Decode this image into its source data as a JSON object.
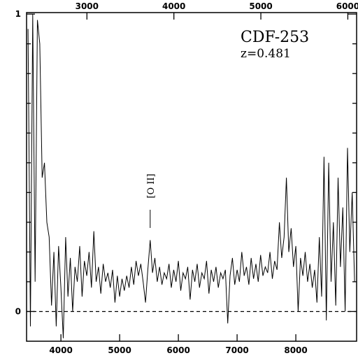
{
  "chart_data": {
    "type": "line",
    "title": "CDF-253",
    "subtitle": "z=0.481",
    "annotations": [
      {
        "text": "[O II]",
        "x": 5520
      }
    ],
    "x": [
      3440,
      3480,
      3520,
      3560,
      3600,
      3640,
      3680,
      3720,
      3760,
      3800,
      3840,
      3880,
      3920,
      3960,
      4000,
      4040,
      4080,
      4120,
      4160,
      4200,
      4240,
      4280,
      4320,
      4360,
      4400,
      4440,
      4480,
      4520,
      4560,
      4600,
      4640,
      4680,
      4720,
      4760,
      4800,
      4840,
      4880,
      4920,
      4960,
      5000,
      5040,
      5080,
      5120,
      5160,
      5200,
      5240,
      5280,
      5320,
      5360,
      5400,
      5440,
      5480,
      5520,
      5560,
      5600,
      5640,
      5680,
      5720,
      5760,
      5800,
      5840,
      5880,
      5920,
      5960,
      6000,
      6040,
      6080,
      6120,
      6160,
      6200,
      6240,
      6280,
      6320,
      6360,
      6400,
      6440,
      6480,
      6520,
      6560,
      6600,
      6640,
      6680,
      6720,
      6760,
      6800,
      6840,
      6880,
      6920,
      6960,
      7000,
      7040,
      7080,
      7120,
      7160,
      7200,
      7240,
      7280,
      7320,
      7360,
      7400,
      7440,
      7480,
      7520,
      7560,
      7600,
      7640,
      7680,
      7720,
      7760,
      7800,
      7840,
      7880,
      7920,
      7960,
      8000,
      8040,
      8080,
      8120,
      8160,
      8200,
      8240,
      8280,
      8320,
      8360,
      8400,
      8440,
      8480,
      8520,
      8560,
      8600,
      8640,
      8680,
      8720,
      8760,
      8800,
      8840,
      8880,
      8920,
      8960,
      9000
    ],
    "series": [
      {
        "color": "#000000",
        "values": [
          0.95,
          -0.05,
          1.0,
          0.1,
          0.98,
          0.9,
          0.45,
          0.5,
          0.3,
          0.25,
          0.02,
          0.2,
          -0.05,
          0.22,
          0.08,
          -0.09,
          0.25,
          0.05,
          0.18,
          0.0,
          0.15,
          0.1,
          0.22,
          0.05,
          0.17,
          0.12,
          0.2,
          0.08,
          0.27,
          0.1,
          0.15,
          0.06,
          0.16,
          0.1,
          0.13,
          0.08,
          0.14,
          0.03,
          0.12,
          0.05,
          0.11,
          0.07,
          0.12,
          0.08,
          0.15,
          0.09,
          0.17,
          0.12,
          0.16,
          0.1,
          0.03,
          0.14,
          0.24,
          0.13,
          0.18,
          0.1,
          0.15,
          0.09,
          0.13,
          0.11,
          0.16,
          0.08,
          0.14,
          0.1,
          0.17,
          0.07,
          0.13,
          0.11,
          0.15,
          0.04,
          0.14,
          0.1,
          0.16,
          0.08,
          0.13,
          0.11,
          0.17,
          0.06,
          0.14,
          0.1,
          0.15,
          0.08,
          0.13,
          0.11,
          0.14,
          -0.04,
          0.12,
          0.18,
          0.09,
          0.14,
          0.1,
          0.2,
          0.12,
          0.15,
          0.09,
          0.18,
          0.11,
          0.16,
          0.1,
          0.19,
          0.12,
          0.15,
          0.13,
          0.2,
          0.11,
          0.17,
          0.14,
          0.3,
          0.18,
          0.25,
          0.45,
          0.2,
          0.28,
          0.15,
          0.22,
          0.0,
          0.18,
          0.12,
          0.2,
          0.1,
          0.16,
          0.08,
          0.14,
          0.03,
          0.25,
          0.05,
          0.52,
          -0.03,
          0.5,
          0.1,
          0.3,
          0.02,
          0.45,
          0.15,
          0.35,
          0.0,
          0.55,
          0.2,
          0.4,
          0.1
        ]
      }
    ],
    "xlim": [
      3415,
      9035
    ],
    "xticks": [
      4000,
      5000,
      6000,
      7000,
      8000
    ],
    "x2lim": [
      2306,
      6101
    ],
    "x2ticks": [
      3000,
      4000,
      5000,
      6000
    ],
    "ylim": [
      -0.1,
      1.005
    ],
    "yticks": [
      0,
      1
    ],
    "yminorticks": [
      0.1,
      0.2,
      0.3,
      0.4,
      0.5,
      0.6,
      0.7,
      0.8,
      0.9
    ],
    "zero_line": true
  }
}
